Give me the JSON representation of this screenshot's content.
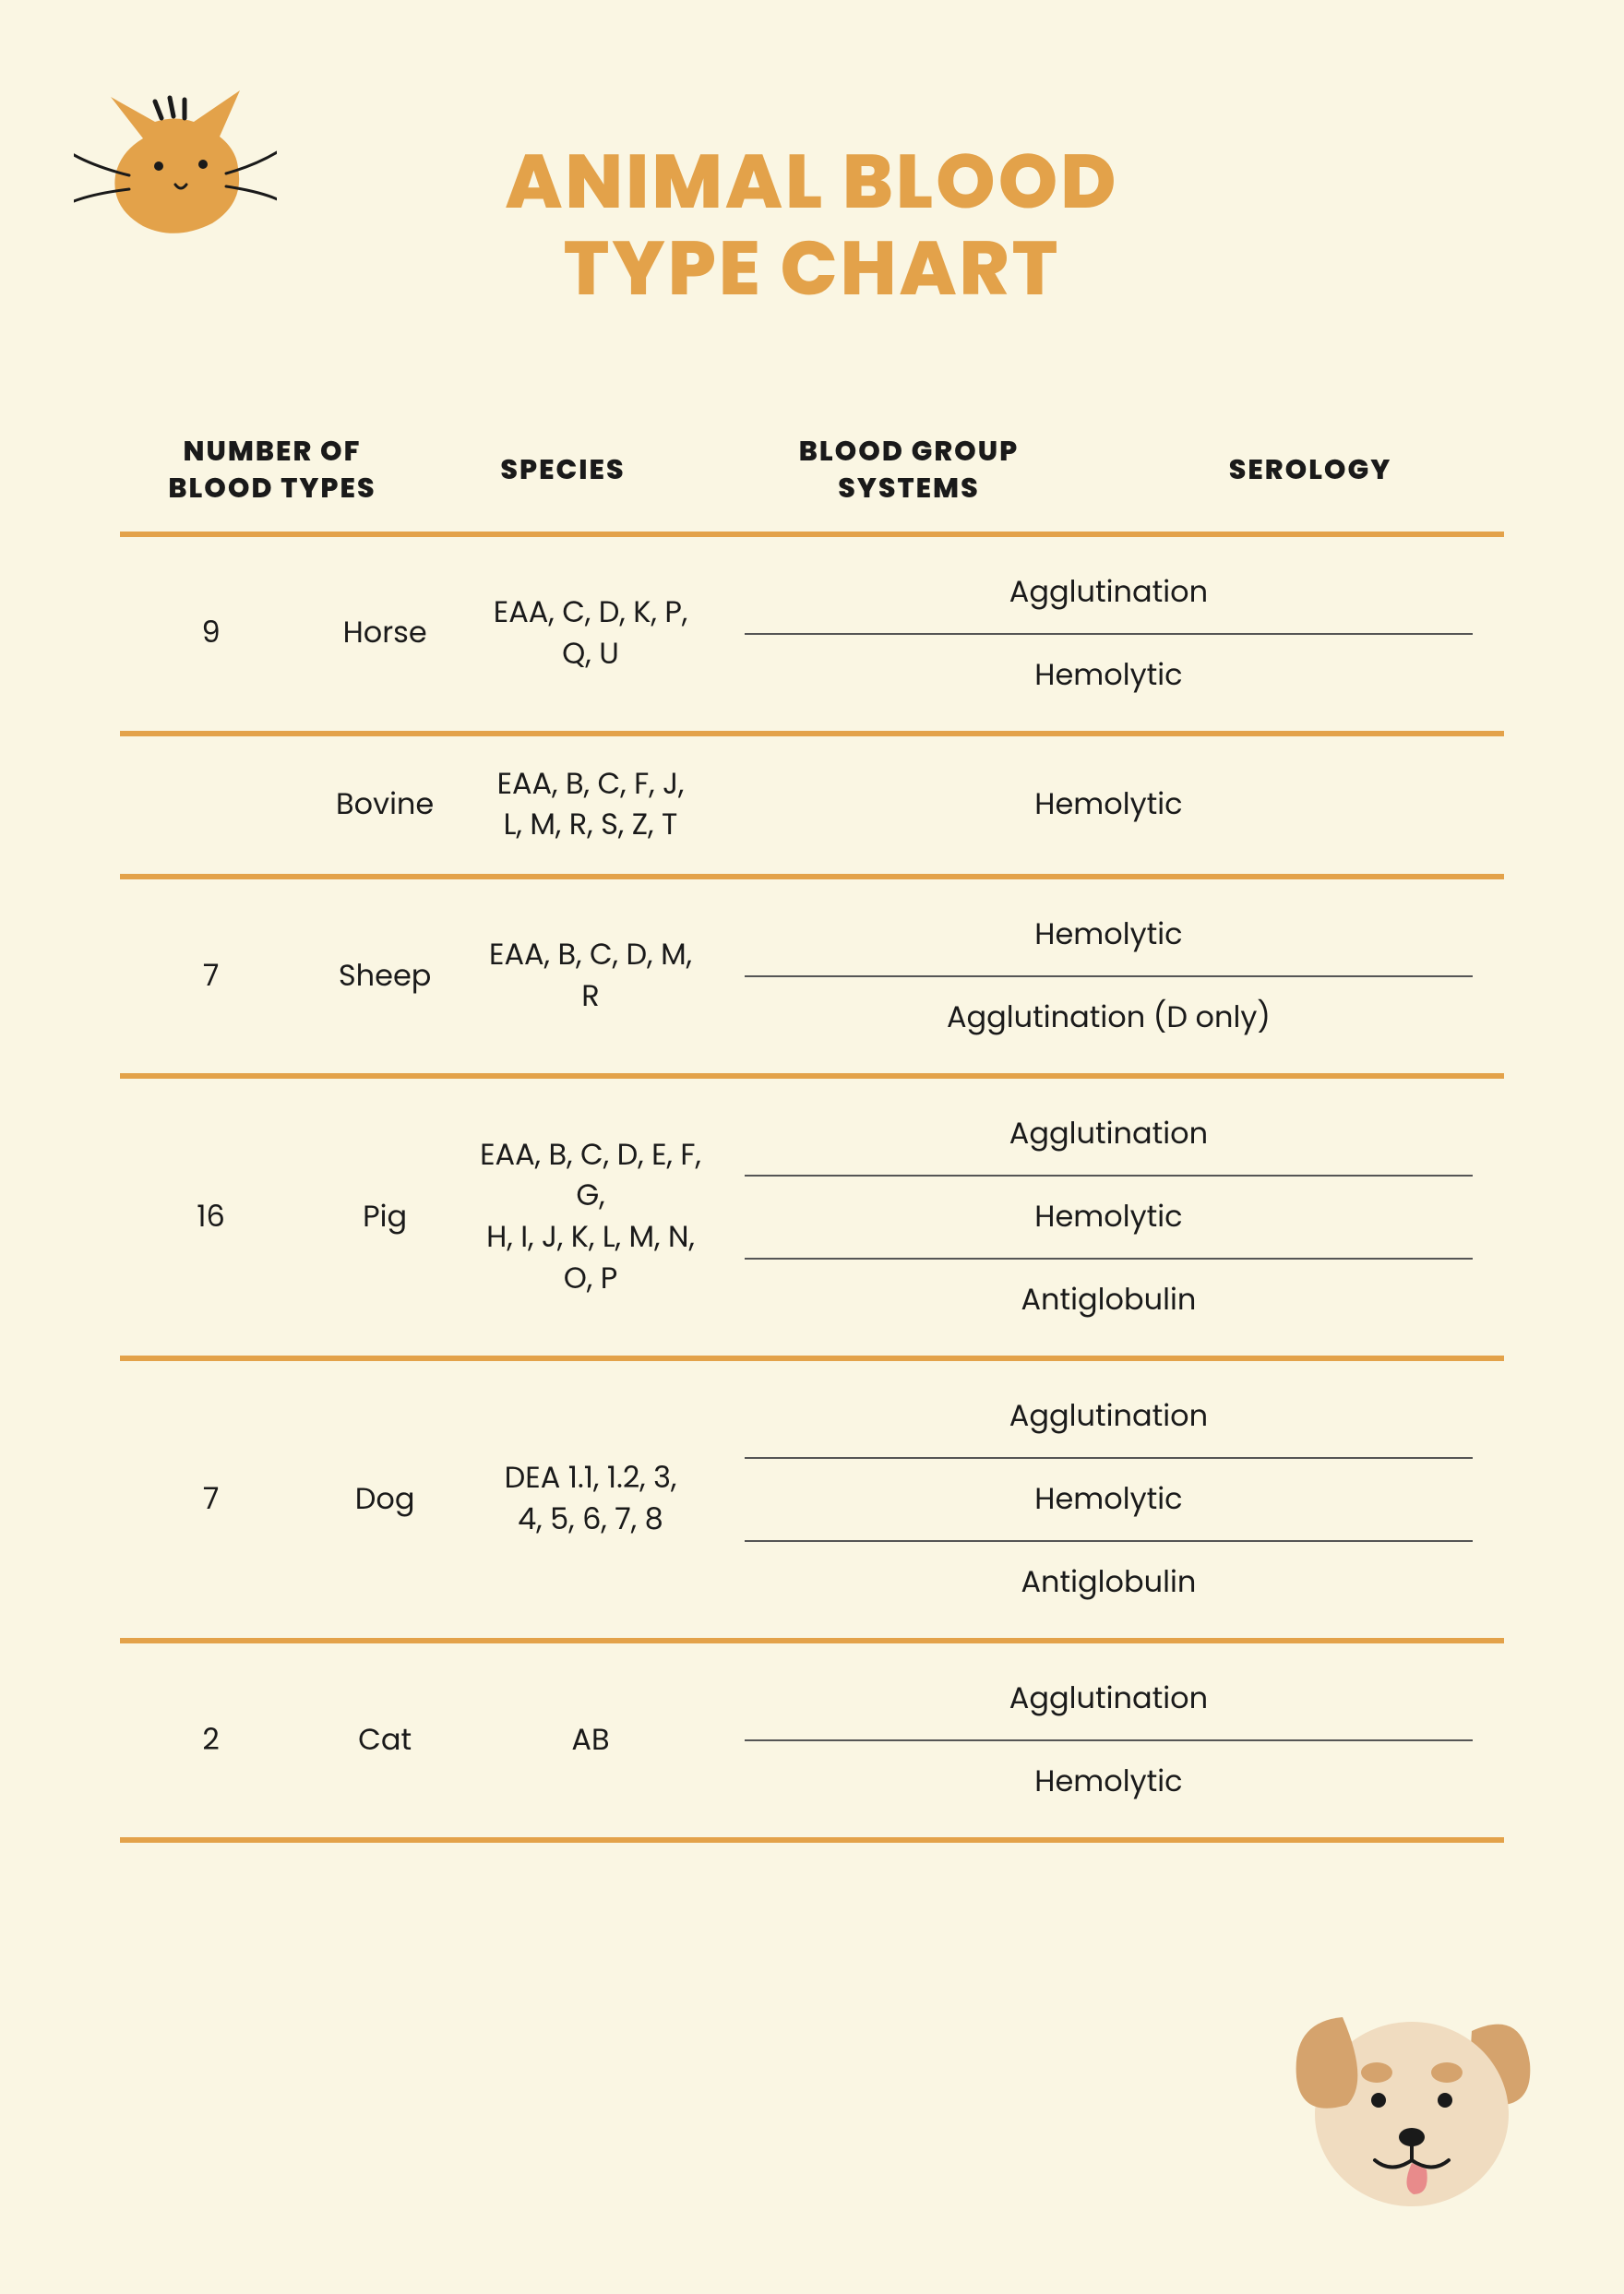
{
  "theme": {
    "background": "#faf6e3",
    "accent": "#e3a24a",
    "text": "#1a1a1a",
    "divider": "#555555",
    "title_fontsize": 82,
    "header_fontsize": 30,
    "cell_fontsize": 32
  },
  "title": {
    "line1": "ANIMAL BLOOD",
    "line2": "TYPE CHART"
  },
  "icons": {
    "cat": "cat-icon",
    "dog": "dog-icon"
  },
  "columns": {
    "num": "NUMBER OF\nBLOOD TYPES",
    "species": "SPECIES",
    "systems": "BLOOD GROUP\nSYSTEMS",
    "serology": "SEROLOGY"
  },
  "rows": [
    {
      "num": "9",
      "species": "Horse",
      "systems": "EAA, C, D, K, P, Q, U",
      "serology": [
        "Agglutination",
        "Hemolytic"
      ]
    },
    {
      "num": "",
      "species": "Bovine",
      "systems": "EAA, B, C, F, J,\nL, M, R, S, Z, T",
      "serology": [
        "Hemolytic"
      ]
    },
    {
      "num": "7",
      "species": "Sheep",
      "systems": "EAA, B, C, D, M, R",
      "serology": [
        "Hemolytic",
        "Agglutination (D only)"
      ]
    },
    {
      "num": "16",
      "species": "Pig",
      "systems": "EAA, B, C, D, E, F, G,\nH, I, J, K, L, M, N, O, P",
      "serology": [
        "Agglutination",
        "Hemolytic",
        "Antiglobulin"
      ]
    },
    {
      "num": "7",
      "species": "Dog",
      "systems": "DEA 1.1, 1.2, 3,\n4, 5, 6, 7, 8",
      "serology": [
        "Agglutination",
        "Hemolytic",
        "Antiglobulin"
      ]
    },
    {
      "num": "2",
      "species": "Cat",
      "systems": "AB",
      "serology": [
        "Agglutination",
        "Hemolytic"
      ]
    }
  ]
}
